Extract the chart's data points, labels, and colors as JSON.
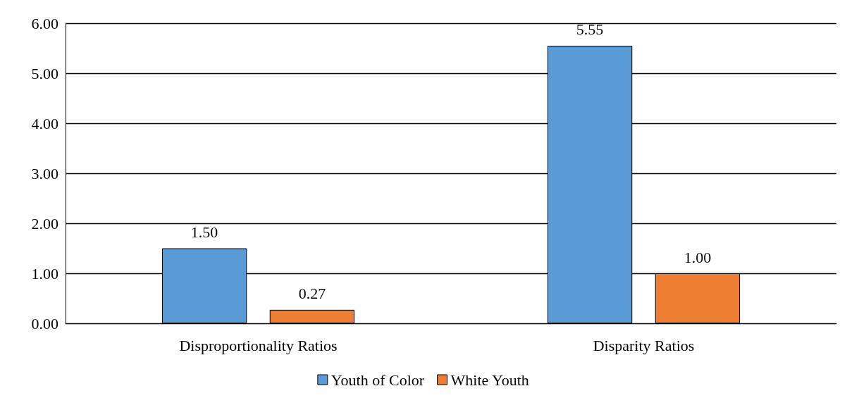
{
  "chart_data": {
    "type": "bar",
    "categories": [
      "Disproportionality Ratios",
      "Disparity Ratios"
    ],
    "series": [
      {
        "name": "Youth of Color",
        "color": "#5b9bd5",
        "values": [
          1.5,
          5.55
        ],
        "value_labels": [
          "1.50",
          "5.55"
        ]
      },
      {
        "name": "White Youth",
        "color": "#ed7d31",
        "values": [
          0.27,
          1.0
        ],
        "value_labels": [
          "0.27",
          "1.00"
        ]
      }
    ],
    "ylim": [
      0,
      6
    ],
    "yticks": [
      {
        "value": 0,
        "label": "0.00"
      },
      {
        "value": 1,
        "label": "1.00"
      },
      {
        "value": 2,
        "label": "2.00"
      },
      {
        "value": 3,
        "label": "3.00"
      },
      {
        "value": 4,
        "label": "4.00"
      },
      {
        "value": 5,
        "label": "5.00"
      },
      {
        "value": 6,
        "label": "6.00"
      }
    ],
    "grid": "y",
    "legend": "bottom"
  }
}
